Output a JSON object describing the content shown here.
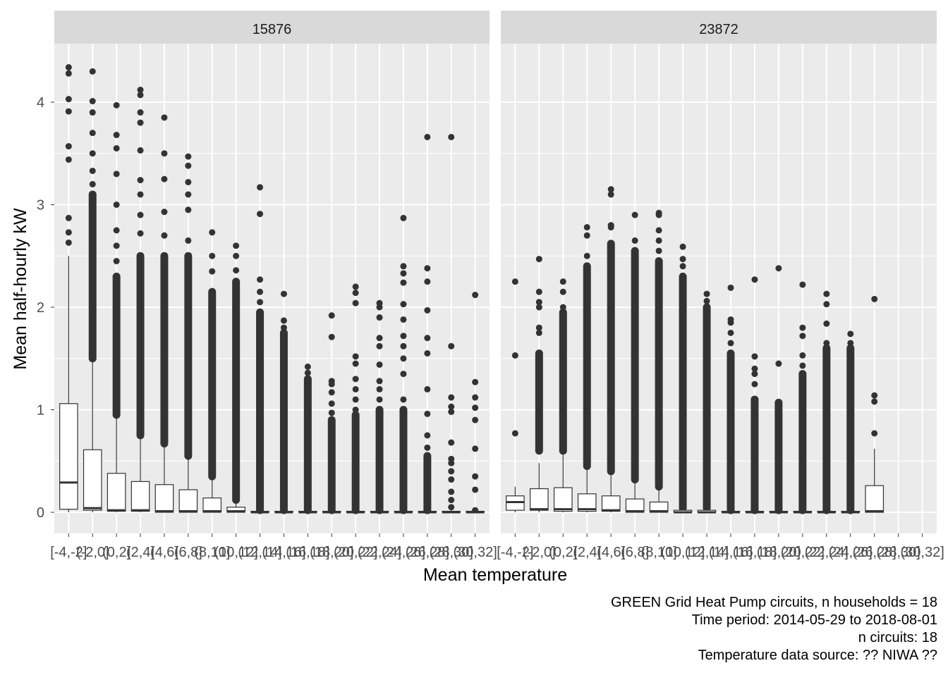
{
  "chart_data": {
    "type": "boxplot",
    "xlabel": "Mean temperature",
    "ylabel": "Mean half-hourly kW",
    "ylim": [
      -0.2,
      4.47
    ],
    "y_ticks": [
      0,
      1,
      2,
      3,
      4
    ],
    "grid": true,
    "categories": [
      "[-4,-2]",
      "(-2,0]",
      "(0,2]",
      "(2,4]",
      "(4,6]",
      "(6,8]",
      "(8,10]",
      "(10,12]",
      "(12,14]",
      "(14,16]",
      "(16,18]",
      "(18,20]",
      "(20,22]",
      "(22,24]",
      "(24,26]",
      "(26,28]",
      "(28,30]",
      "(30,32]"
    ],
    "panels": [
      {
        "label": "15876",
        "boxes": [
          {
            "q1": 0.03,
            "median": 0.29,
            "q3": 1.06,
            "whisker_low": 0.0,
            "whisker_high": 2.5,
            "outliers": [
              2.63,
              2.73,
              2.87,
              3.44,
              3.57,
              3.91,
              4.03,
              4.28,
              4.34
            ]
          },
          {
            "q1": 0.02,
            "median": 0.04,
            "q3": 0.61,
            "whisker_low": 0.0,
            "whisker_high": 1.5,
            "outliers_range": [
              1.5,
              3.1
            ],
            "outliers": [
              3.2,
              3.33,
              3.5,
              3.7,
              3.9,
              4.01,
              4.3
            ]
          },
          {
            "q1": 0.01,
            "median": 0.02,
            "q3": 0.38,
            "whisker_low": 0.0,
            "whisker_high": 0.95,
            "outliers_range": [
              0.95,
              2.3
            ],
            "outliers": [
              2.45,
              2.6,
              2.75,
              3.0,
              3.3,
              3.55,
              3.68,
              3.97
            ]
          },
          {
            "q1": 0.01,
            "median": 0.02,
            "q3": 0.3,
            "whisker_low": 0.0,
            "whisker_high": 0.75,
            "outliers_range": [
              0.75,
              2.5
            ],
            "outliers": [
              2.72,
              2.9,
              3.1,
              3.24,
              3.53,
              3.8,
              3.9,
              4.07,
              4.12
            ]
          },
          {
            "q1": 0.0,
            "median": 0.01,
            "q3": 0.27,
            "whisker_low": 0.0,
            "whisker_high": 0.67,
            "outliers_range": [
              0.67,
              2.5
            ],
            "outliers": [
              2.7,
              2.93,
              3.25,
              3.5,
              3.85
            ]
          },
          {
            "q1": 0.0,
            "median": 0.01,
            "q3": 0.22,
            "whisker_low": 0.0,
            "whisker_high": 0.55,
            "outliers_range": [
              0.55,
              2.5
            ],
            "outliers": [
              2.65,
              2.95,
              3.1,
              3.22,
              3.38,
              3.47
            ]
          },
          {
            "q1": 0.0,
            "median": 0.01,
            "q3": 0.14,
            "whisker_low": 0.0,
            "whisker_high": 0.35,
            "outliers_range": [
              0.35,
              2.15
            ],
            "outliers": [
              2.35,
              2.5,
              2.73
            ]
          },
          {
            "q1": 0.0,
            "median": 0.01,
            "q3": 0.05,
            "whisker_low": 0.0,
            "whisker_high": 0.12,
            "outliers_range": [
              0.12,
              2.25
            ],
            "outliers": [
              2.36,
              2.5,
              2.6
            ]
          },
          {
            "q1": 0.0,
            "median": 0.0,
            "q3": 0.01,
            "whisker_low": 0.0,
            "whisker_high": 0.02,
            "outliers_range": [
              0.02,
              1.95
            ],
            "outliers": [
              2.05,
              2.15,
              2.27,
              2.91,
              3.17
            ]
          },
          {
            "q1": 0.0,
            "median": 0.0,
            "q3": 0.01,
            "whisker_low": 0.0,
            "whisker_high": 0.02,
            "outliers_range": [
              0.02,
              1.75
            ],
            "outliers": [
              1.8,
              1.87,
              2.13
            ]
          },
          {
            "q1": 0.0,
            "median": 0.0,
            "q3": 0.01,
            "whisker_low": 0.0,
            "whisker_high": 0.02,
            "outliers_range": [
              0.02,
              1.3
            ],
            "outliers": [
              1.36,
              1.42
            ]
          },
          {
            "q1": 0.0,
            "median": 0.0,
            "q3": 0.01,
            "whisker_low": 0.0,
            "whisker_high": 0.02,
            "outliers_range": [
              0.02,
              0.9
            ],
            "outliers": [
              0.97,
              1.06,
              1.17,
              1.25,
              1.28,
              1.71,
              1.92
            ]
          },
          {
            "q1": 0.0,
            "median": 0.0,
            "q3": 0.01,
            "whisker_low": 0.0,
            "whisker_high": 0.02,
            "outliers_range": [
              0.02,
              0.95
            ],
            "outliers": [
              1.0,
              1.1,
              1.2,
              1.3,
              1.45,
              1.52,
              2.04,
              2.14,
              2.2
            ]
          },
          {
            "q1": 0.0,
            "median": 0.0,
            "q3": 0.01,
            "whisker_low": 0.0,
            "whisker_high": 0.02,
            "outliers_range": [
              0.02,
              1.0
            ],
            "outliers": [
              1.1,
              1.2,
              1.28,
              1.44,
              1.62,
              1.7,
              1.9,
              2.0,
              2.04
            ]
          },
          {
            "q1": 0.0,
            "median": 0.0,
            "q3": 0.01,
            "whisker_low": 0.0,
            "whisker_high": 0.02,
            "outliers_range": [
              0.02,
              1.0
            ],
            "outliers": [
              1.1,
              1.35,
              1.5,
              1.62,
              1.72,
              1.88,
              2.03,
              2.24,
              2.33,
              2.4,
              2.87
            ]
          },
          {
            "q1": 0.0,
            "median": 0.0,
            "q3": 0.01,
            "whisker_low": 0.0,
            "whisker_high": 0.02,
            "outliers_range": [
              0.02,
              0.55
            ],
            "outliers": [
              0.63,
              0.75,
              0.96,
              1.2,
              1.55,
              1.7,
              1.97,
              2.25,
              2.38,
              3.66
            ]
          },
          {
            "q1": 0.0,
            "median": 0.0,
            "q3": 0.01,
            "whisker_low": 0.0,
            "whisker_high": 0.02,
            "outliers": [
              0.05,
              0.12,
              0.2,
              0.32,
              0.4,
              0.48,
              0.52,
              0.68,
              0.98,
              1.03,
              1.12,
              1.62,
              3.66
            ]
          },
          {
            "q1": 0.0,
            "median": 0.0,
            "q3": 0.01,
            "whisker_low": 0.0,
            "whisker_high": 0.02,
            "outliers": [
              0.02,
              0.22,
              0.35,
              0.62,
              0.9,
              1.02,
              1.12,
              1.27,
              2.12
            ]
          }
        ]
      },
      {
        "label": "23872",
        "boxes": [
          {
            "q1": 0.02,
            "median": 0.1,
            "q3": 0.16,
            "whisker_low": 0.0,
            "whisker_high": 0.25,
            "outliers": [
              0.77,
              1.53,
              2.25
            ]
          },
          {
            "q1": 0.02,
            "median": 0.03,
            "q3": 0.23,
            "whisker_low": 0.0,
            "whisker_high": 0.48,
            "outliers_range": [
              0.6,
              1.55
            ],
            "outliers": [
              1.75,
              1.8,
              2.0,
              2.05,
              2.15,
              2.47
            ]
          },
          {
            "q1": 0.01,
            "median": 0.03,
            "q3": 0.24,
            "whisker_low": 0.0,
            "whisker_high": 0.6,
            "outliers_range": [
              0.6,
              1.95
            ],
            "outliers": [
              2.0,
              2.15,
              2.25
            ]
          },
          {
            "q1": 0.01,
            "median": 0.03,
            "q3": 0.18,
            "whisker_low": 0.0,
            "whisker_high": 0.45,
            "outliers_range": [
              0.45,
              2.4
            ],
            "outliers": [
              2.5,
              2.7,
              2.78
            ]
          },
          {
            "q1": 0.01,
            "median": 0.02,
            "q3": 0.16,
            "whisker_low": 0.0,
            "whisker_high": 0.4,
            "outliers_range": [
              0.4,
              2.62
            ],
            "outliers": [
              2.78,
              2.8,
              3.1,
              3.15
            ]
          },
          {
            "q1": 0.0,
            "median": 0.01,
            "q3": 0.13,
            "whisker_low": 0.0,
            "whisker_high": 0.32,
            "outliers_range": [
              0.32,
              2.55
            ],
            "outliers": [
              2.65,
              2.9
            ]
          },
          {
            "q1": 0.0,
            "median": 0.01,
            "q3": 0.1,
            "whisker_low": 0.0,
            "whisker_high": 0.25,
            "outliers_range": [
              0.25,
              2.45
            ],
            "outliers": [
              2.55,
              2.65,
              2.75,
              2.9,
              2.92
            ]
          },
          {
            "q1": 0.0,
            "median": 0.0,
            "q3": 0.02,
            "whisker_low": 0.0,
            "whisker_high": 0.04,
            "outliers_range": [
              0.04,
              2.3
            ],
            "outliers": [
              2.4,
              2.47,
              2.59
            ]
          },
          {
            "q1": 0.0,
            "median": 0.0,
            "q3": 0.02,
            "whisker_low": 0.0,
            "whisker_high": 0.04,
            "outliers_range": [
              0.04,
              2.0
            ],
            "outliers": [
              2.06,
              2.13
            ]
          },
          {
            "q1": 0.0,
            "median": 0.0,
            "q3": 0.01,
            "whisker_low": 0.0,
            "whisker_high": 0.02,
            "outliers_range": [
              0.02,
              1.55
            ],
            "outliers": [
              1.65,
              1.75,
              1.85,
              1.88,
              2.19
            ]
          },
          {
            "q1": 0.0,
            "median": 0.0,
            "q3": 0.01,
            "whisker_low": 0.0,
            "whisker_high": 0.02,
            "outliers_range": [
              0.02,
              1.1
            ],
            "outliers": [
              1.25,
              1.35,
              1.4,
              1.52,
              2.27
            ]
          },
          {
            "q1": 0.0,
            "median": 0.0,
            "q3": 0.01,
            "whisker_low": 0.0,
            "whisker_high": 0.02,
            "outliers_range": [
              0.02,
              1.07
            ],
            "outliers": [
              1.45,
              2.38
            ]
          },
          {
            "q1": 0.0,
            "median": 0.0,
            "q3": 0.01,
            "whisker_low": 0.0,
            "whisker_high": 0.02,
            "outliers_range": [
              0.02,
              1.35
            ],
            "outliers": [
              1.43,
              1.53,
              1.72,
              1.8,
              2.22
            ]
          },
          {
            "q1": 0.0,
            "median": 0.0,
            "q3": 0.01,
            "whisker_low": 0.0,
            "whisker_high": 0.02,
            "outliers_range": [
              0.02,
              1.6
            ],
            "outliers": [
              1.65,
              1.84,
              2.03,
              2.13
            ]
          },
          {
            "q1": 0.0,
            "median": 0.0,
            "q3": 0.01,
            "whisker_low": 0.0,
            "whisker_high": 0.02,
            "outliers_range": [
              0.02,
              1.6
            ],
            "outliers": [
              1.65,
              1.74
            ]
          },
          {
            "q1": 0.0,
            "median": 0.01,
            "q3": 0.26,
            "whisker_low": 0.0,
            "whisker_high": 0.62,
            "outliers": [
              0.77,
              1.08,
              1.14,
              2.08
            ]
          }
        ]
      }
    ],
    "captions": [
      "GREEN Grid Heat Pump circuits, n households = 18",
      "Time period: 2014-05-29 to 2018-08-01",
      "n circuits: 18",
      "Temperature data source: ?? NIWA ??"
    ],
    "colors": {
      "panel_bg": "#EBEBEB",
      "strip_bg": "#D9D9D9",
      "grid": "#FFFFFF",
      "box_fill": "#FFFFFF",
      "box_line": "#333333",
      "outlier": "#333333",
      "text": "#000000",
      "tick_text": "#4D4D4D"
    }
  }
}
